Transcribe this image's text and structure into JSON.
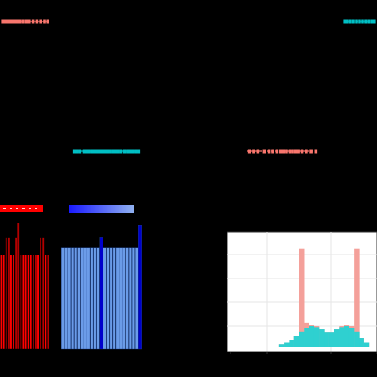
{
  "colors": {
    "background": "#000000",
    "salmon": "#f8766d",
    "teal": "#00bfc4",
    "red": "#ff0000",
    "dark_red": "#b30000",
    "blue_light": "#6b9ce8",
    "blue_dark": "#0000cc",
    "hist_salmon": "#f4a09a",
    "hist_teal": "#2fd0d0",
    "grid": "#e6e6e6",
    "panel_bg": "#ffffff"
  },
  "chart_data": [
    {
      "type": "scatter",
      "panel": "dot-strip-top-left",
      "series": [
        {
          "color": "salmon",
          "values": [
            0.02,
            0.08,
            0.12,
            0.18,
            0.22,
            0.27,
            0.33,
            0.38,
            0.45,
            0.52,
            0.58,
            0.66,
            0.74,
            0.82,
            0.9,
            0.97
          ]
        }
      ],
      "xlim": [
        0,
        1
      ]
    },
    {
      "type": "scatter",
      "panel": "dot-strip-top-right",
      "series": [
        {
          "color": "teal",
          "values": [
            0.03,
            0.1,
            0.2,
            0.3,
            0.4,
            0.5,
            0.6,
            0.7,
            0.8,
            0.9,
            0.97
          ]
        }
      ],
      "xlim": [
        0,
        1
      ]
    },
    {
      "type": "scatter",
      "panel": "dot-strip-middle-left",
      "series": [
        {
          "color": "teal",
          "values": [
            0.02,
            0.06,
            0.1,
            0.16,
            0.2,
            0.24,
            0.29,
            0.33,
            0.37,
            0.41,
            0.45,
            0.48,
            0.52,
            0.56,
            0.6,
            0.64,
            0.68,
            0.72,
            0.77,
            0.82,
            0.86,
            0.9,
            0.94,
            0.98
          ]
        }
      ],
      "xlim": [
        0,
        1
      ]
    },
    {
      "type": "scatter",
      "panel": "dot-strip-middle-right",
      "series": [
        {
          "color": "salmon",
          "values": [
            0.03,
            0.09,
            0.15,
            0.24,
            0.31,
            0.36,
            0.42,
            0.47,
            0.51,
            0.55,
            0.6,
            0.64,
            0.68,
            0.72,
            0.77,
            0.83,
            0.9,
            0.97
          ]
        }
      ],
      "xlim": [
        0,
        1
      ]
    },
    {
      "type": "bar",
      "panel": "red-bars",
      "header_color": "red",
      "values": [
        0.66,
        0.66,
        0.78,
        0.78,
        0.66,
        0.66,
        0.78,
        0.88,
        0.66,
        0.66,
        0.66,
        0.66,
        0.66,
        0.66,
        0.66,
        0.66,
        0.78,
        0.78,
        0.66,
        0.66
      ],
      "highlight": [
        0,
        0,
        1,
        1,
        0,
        0,
        1,
        1,
        1,
        0,
        0,
        0,
        0,
        1,
        1,
        0,
        1,
        1,
        0,
        1
      ],
      "ylim": [
        0,
        1
      ]
    },
    {
      "type": "bar",
      "panel": "blue-bars",
      "header_color": "blue",
      "values": [
        0.67,
        0.67,
        0.67,
        0.67,
        0.67,
        0.67,
        0.67,
        0.67,
        0.67,
        0.67,
        0.67,
        0.67,
        0.74,
        0.67,
        0.67,
        0.67,
        0.67,
        0.67,
        0.67,
        0.67,
        0.67,
        0.67,
        0.67,
        0.67,
        0.82
      ],
      "dark": [
        0,
        0,
        0,
        0,
        0,
        0,
        0,
        0,
        0,
        0,
        0,
        0,
        1,
        0,
        0,
        0,
        0,
        0,
        0,
        0,
        0,
        0,
        0,
        0,
        1
      ],
      "ylim": [
        0,
        1
      ]
    },
    {
      "type": "bar",
      "panel": "histogram",
      "series": [
        {
          "color": "hist_salmon",
          "values": [
            0,
            0,
            0,
            0.02,
            0.04,
            0.06,
            0.1,
            0.9,
            0.22,
            0.2,
            0.19,
            0.16,
            0.13,
            0.13,
            0.16,
            0.19,
            0.2,
            0.19,
            0.9,
            0.08,
            0.04
          ]
        },
        {
          "color": "hist_teal",
          "values": [
            0,
            0,
            0,
            0.02,
            0.04,
            0.06,
            0.1,
            0.14,
            0.17,
            0.19,
            0.18,
            0.16,
            0.13,
            0.13,
            0.16,
            0.18,
            0.19,
            0.17,
            0.14,
            0.08,
            0.04
          ]
        }
      ],
      "ylim": [
        0,
        1
      ],
      "grid": true
    }
  ]
}
